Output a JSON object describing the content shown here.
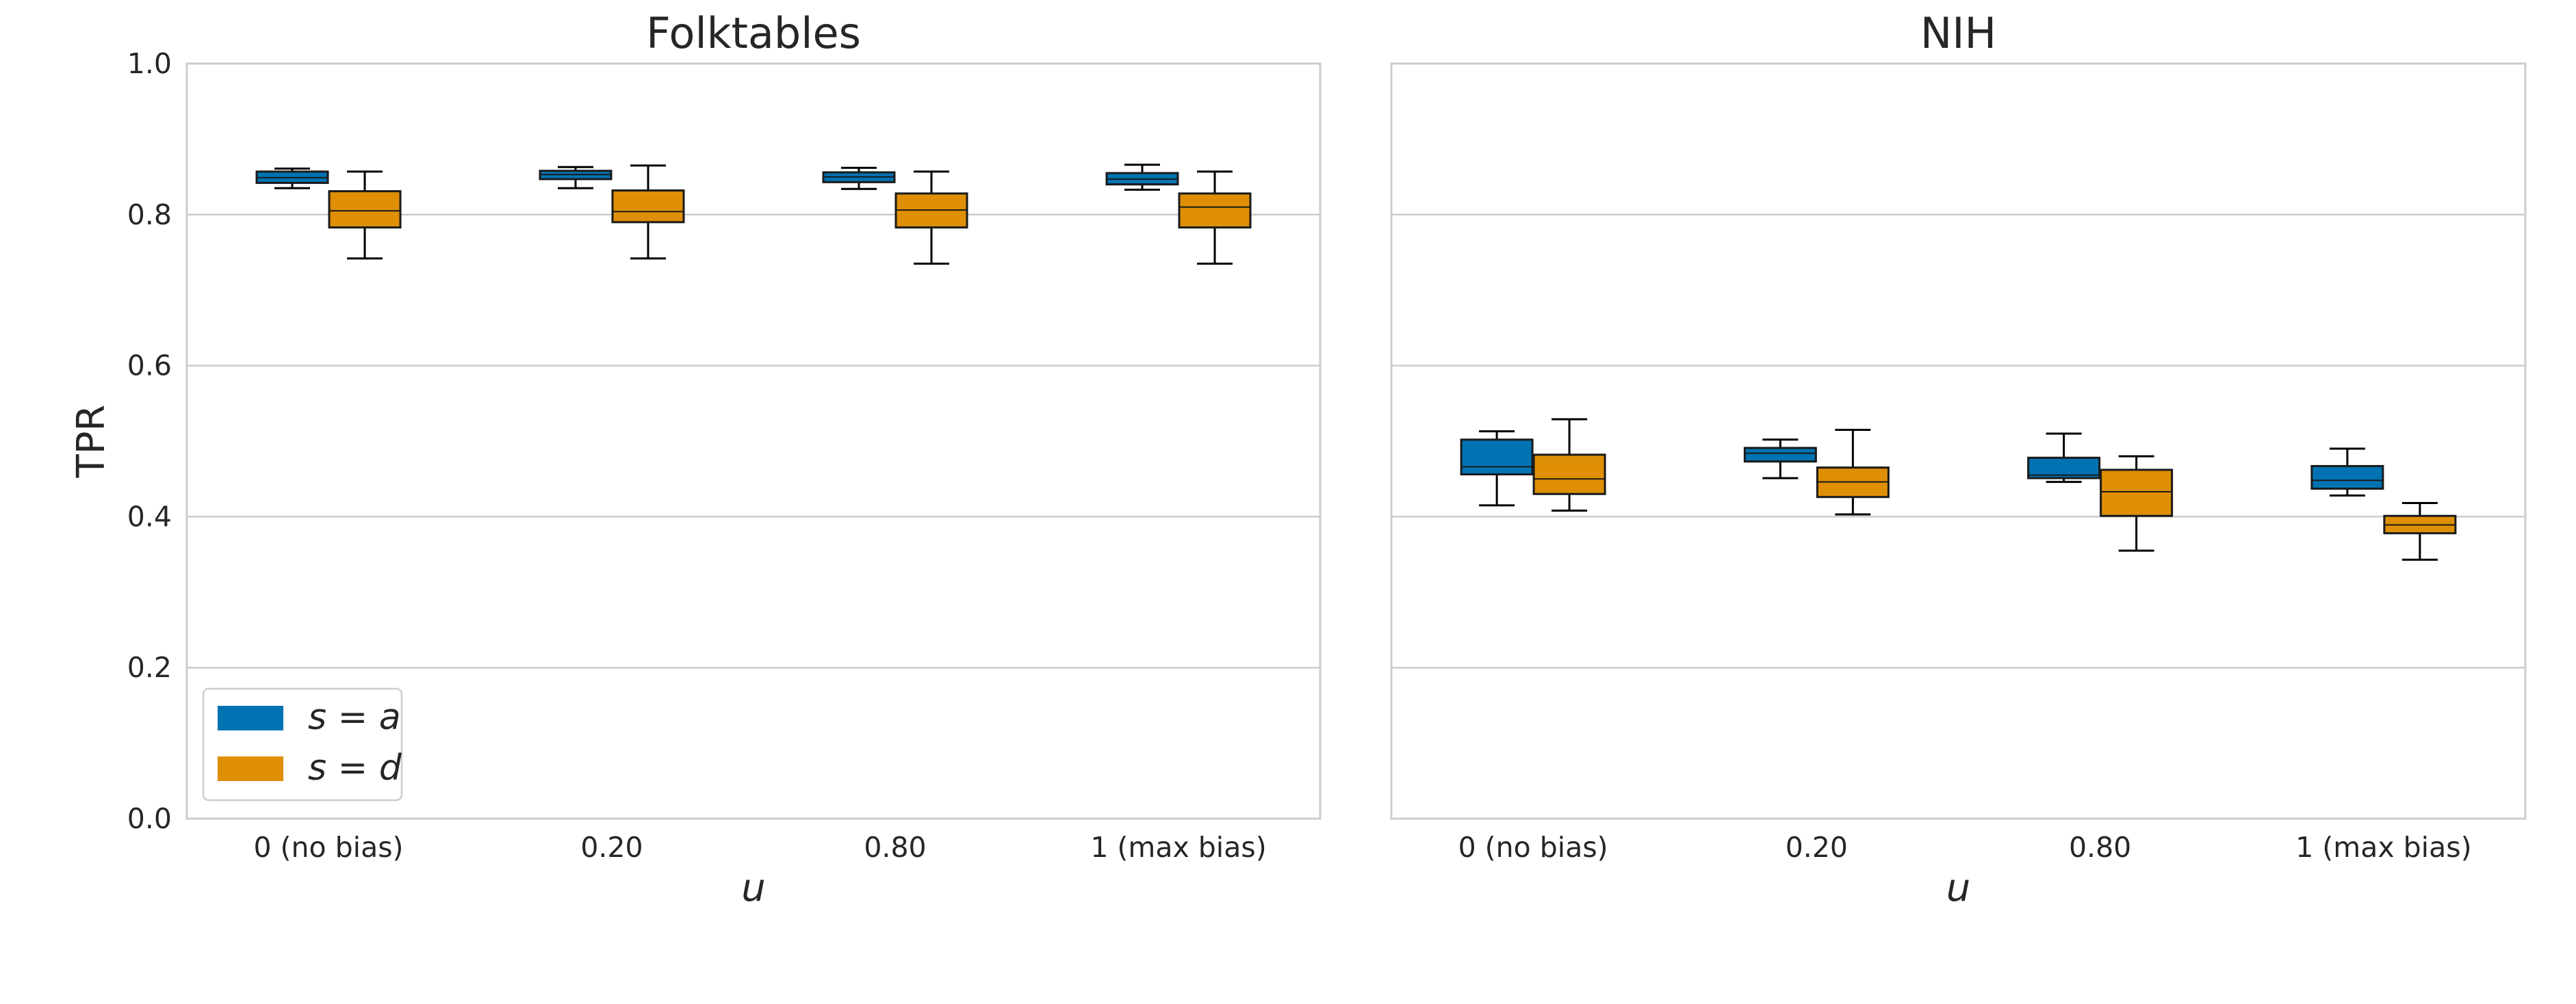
{
  "colors": {
    "series_a": "#0173b2",
    "series_d": "#de8f05",
    "grid": "#cccccc",
    "frame": "#cccccc",
    "whisker": "#000000"
  },
  "legend": {
    "position": "lower-left",
    "entries": [
      "s = a",
      "s = d"
    ]
  },
  "chart_data": [
    {
      "type": "box",
      "title": "Folktables",
      "xlabel": "u",
      "ylabel": "TPR",
      "ylim": [
        0,
        1.0
      ],
      "yticks": [
        "0.0",
        "0.2",
        "0.4",
        "0.6",
        "0.8",
        "1.0"
      ],
      "grid": true,
      "categories": [
        "0 (no bias)",
        "0.20",
        "0.80",
        "1 (max bias)"
      ],
      "series": [
        {
          "name": "s = a",
          "boxes": [
            {
              "min": 0.835,
              "q1": 0.842,
              "median": 0.849,
              "q3": 0.857,
              "max": 0.861
            },
            {
              "min": 0.835,
              "q1": 0.847,
              "median": 0.853,
              "q3": 0.858,
              "max": 0.863
            },
            {
              "min": 0.834,
              "q1": 0.843,
              "median": 0.85,
              "q3": 0.856,
              "max": 0.862
            },
            {
              "min": 0.833,
              "q1": 0.84,
              "median": 0.847,
              "q3": 0.855,
              "max": 0.866
            }
          ]
        },
        {
          "name": "s = d",
          "boxes": [
            {
              "min": 0.742,
              "q1": 0.783,
              "median": 0.805,
              "q3": 0.831,
              "max": 0.857
            },
            {
              "min": 0.742,
              "q1": 0.79,
              "median": 0.804,
              "q3": 0.832,
              "max": 0.865
            },
            {
              "min": 0.735,
              "q1": 0.783,
              "median": 0.806,
              "q3": 0.828,
              "max": 0.857
            },
            {
              "min": 0.735,
              "q1": 0.783,
              "median": 0.81,
              "q3": 0.828,
              "max": 0.857
            }
          ]
        }
      ]
    },
    {
      "type": "box",
      "title": "NIH",
      "xlabel": "u",
      "ylabel": "",
      "ylim": [
        0,
        1.0
      ],
      "grid": true,
      "categories": [
        "0 (no bias)",
        "0.20",
        "0.80",
        "1 (max bias)"
      ],
      "series": [
        {
          "name": "s = a",
          "boxes": [
            {
              "min": 0.415,
              "q1": 0.456,
              "median": 0.466,
              "q3": 0.502,
              "max": 0.513
            },
            {
              "min": 0.451,
              "q1": 0.473,
              "median": 0.484,
              "q3": 0.491,
              "max": 0.502
            },
            {
              "min": 0.446,
              "q1": 0.451,
              "median": 0.455,
              "q3": 0.478,
              "max": 0.51
            },
            {
              "min": 0.428,
              "q1": 0.437,
              "median": 0.448,
              "q3": 0.467,
              "max": 0.49
            }
          ]
        },
        {
          "name": "s = d",
          "boxes": [
            {
              "min": 0.408,
              "q1": 0.43,
              "median": 0.45,
              "q3": 0.482,
              "max": 0.529
            },
            {
              "min": 0.403,
              "q1": 0.426,
              "median": 0.446,
              "q3": 0.465,
              "max": 0.515
            },
            {
              "min": 0.355,
              "q1": 0.401,
              "median": 0.433,
              "q3": 0.462,
              "max": 0.48
            },
            {
              "min": 0.343,
              "q1": 0.378,
              "median": 0.389,
              "q3": 0.401,
              "max": 0.418
            }
          ]
        }
      ]
    }
  ]
}
